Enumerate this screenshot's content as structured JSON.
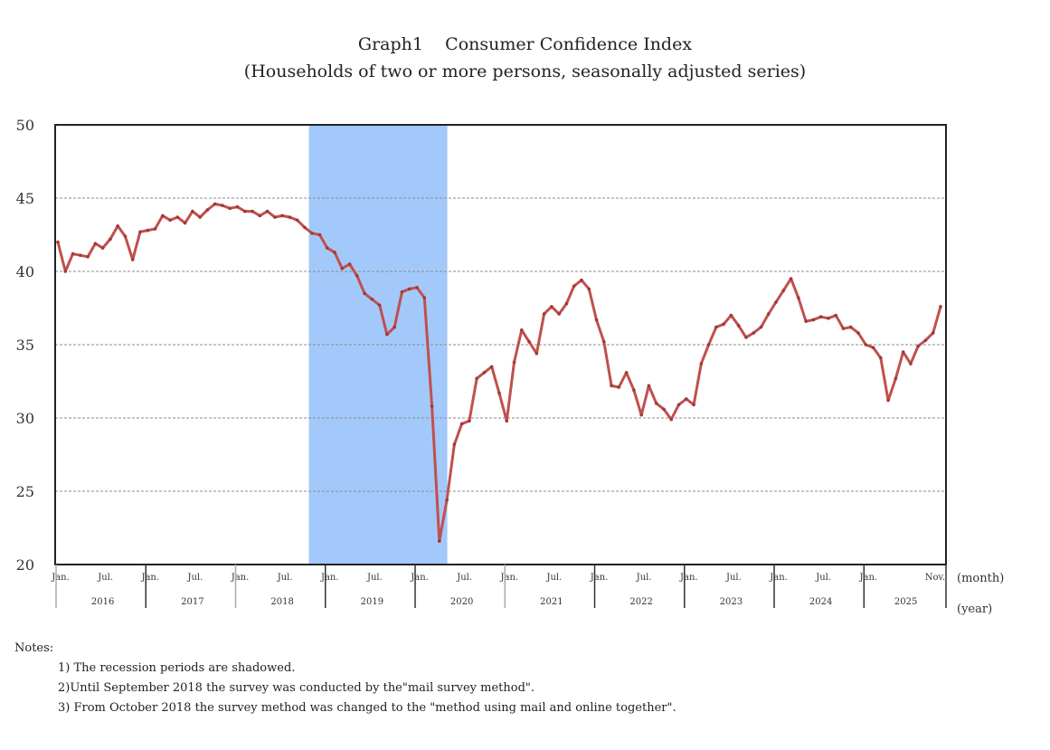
{
  "chart_data": {
    "type": "line",
    "title": "Graph1    Consumer Confidence Index",
    "subtitle": "(Households of two or more persons, seasonally adjusted series)",
    "xlabel_month": "(month)",
    "xlabel_year": "(year)",
    "ylabel": "",
    "ylim": [
      20,
      50
    ],
    "yticks": [
      20,
      25,
      30,
      35,
      40,
      45,
      50
    ],
    "grid": true,
    "start": "2016-01",
    "end": "2025-11",
    "month_ticks": [
      {
        "i": 0,
        "label": "Jan."
      },
      {
        "i": 6,
        "label": "Jul."
      },
      {
        "i": 12,
        "label": "Jan."
      },
      {
        "i": 18,
        "label": "Jul."
      },
      {
        "i": 24,
        "label": "Jan."
      },
      {
        "i": 30,
        "label": "Jul."
      },
      {
        "i": 36,
        "label": "Jan."
      },
      {
        "i": 42,
        "label": "Jul."
      },
      {
        "i": 48,
        "label": "Jan."
      },
      {
        "i": 54,
        "label": "Jul."
      },
      {
        "i": 60,
        "label": "Jan."
      },
      {
        "i": 66,
        "label": "Jul."
      },
      {
        "i": 72,
        "label": "Jan."
      },
      {
        "i": 78,
        "label": "Jul."
      },
      {
        "i": 84,
        "label": "Jan."
      },
      {
        "i": 90,
        "label": "Jul."
      },
      {
        "i": 96,
        "label": "Jan."
      },
      {
        "i": 102,
        "label": "Jul."
      },
      {
        "i": 108,
        "label": "Jan."
      },
      {
        "i": 118,
        "label": "Nov."
      }
    ],
    "years": [
      "2016",
      "2017",
      "2018",
      "2019",
      "2020",
      "2021",
      "2022",
      "2023",
      "2024",
      "2025"
    ],
    "recession": {
      "start_index": 34,
      "end_index": 52
    },
    "series": [
      {
        "name": "Consumer Confidence Index",
        "color": "#c0504d",
        "values": [
          42.0,
          40.0,
          41.2,
          41.1,
          41.0,
          41.9,
          41.6,
          42.2,
          43.1,
          42.4,
          40.8,
          42.7,
          42.8,
          42.9,
          43.8,
          43.5,
          43.7,
          43.3,
          44.1,
          43.7,
          44.2,
          44.6,
          44.5,
          44.3,
          44.4,
          44.1,
          44.1,
          43.8,
          44.1,
          43.7,
          43.8,
          43.7,
          43.5,
          43.0,
          42.6,
          42.5,
          41.6,
          41.3,
          40.2,
          40.5,
          39.7,
          38.5,
          38.1,
          37.7,
          35.7,
          36.2,
          38.6,
          38.8,
          38.9,
          38.2,
          30.8,
          21.6,
          24.4,
          28.2,
          29.6,
          29.8,
          32.7,
          33.1,
          33.5,
          31.7,
          29.8,
          33.8,
          36.0,
          35.2,
          34.4,
          37.1,
          37.6,
          37.1,
          37.8,
          39.0,
          39.4,
          38.8,
          36.7,
          35.2,
          32.2,
          32.1,
          33.1,
          31.9,
          30.2,
          32.2,
          31.0,
          30.6,
          29.9,
          30.9,
          31.3,
          30.9,
          33.7,
          35.0,
          36.2,
          36.4,
          37.0,
          36.3,
          35.5,
          35.8,
          36.2,
          37.1,
          37.9,
          38.7,
          39.5,
          38.2,
          36.6,
          36.7,
          36.9,
          36.8,
          37.0,
          36.1,
          36.2,
          35.8,
          35.0,
          34.8,
          34.1,
          31.2,
          32.7,
          34.5,
          33.7,
          34.9,
          35.3,
          35.8,
          37.6
        ]
      }
    ]
  },
  "notes": {
    "heading": "Notes:",
    "items": [
      "1) The recession periods are shadowed.",
      "2)Until September 2018 the survey was conducted by the\"mail survey method\".",
      "3) From October 2018 the survey method was changed to the \"method using mail and online together\"."
    ]
  },
  "colors": {
    "line": "#c0504d",
    "recession": "#a3c9fb",
    "grid": "#8c8c8c",
    "frame": "#222222"
  }
}
